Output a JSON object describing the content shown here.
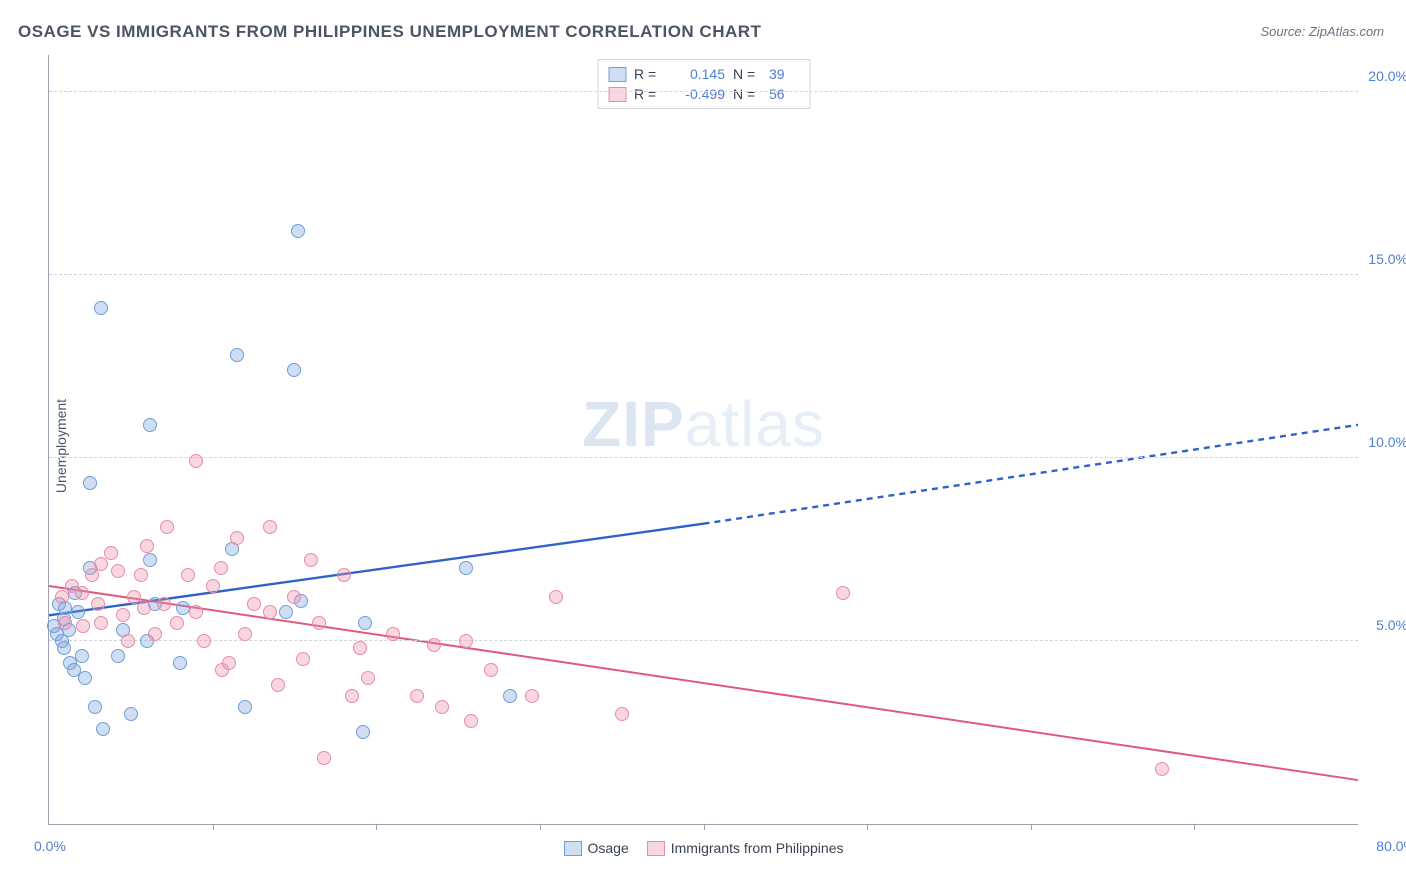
{
  "title": "OSAGE VS IMMIGRANTS FROM PHILIPPINES UNEMPLOYMENT CORRELATION CHART",
  "source_label": "Source: ZipAtlas.com",
  "yaxis_label": "Unemployment",
  "watermark": {
    "bold": "ZIP",
    "rest": "atlas"
  },
  "chart": {
    "type": "scatter",
    "xlim": [
      0,
      80
    ],
    "ylim": [
      0,
      21
    ],
    "x_label_min": "0.0%",
    "x_label_max": "80.0%",
    "xtick_positions": [
      10,
      20,
      30,
      40,
      50,
      60,
      70
    ],
    "yticks": [
      {
        "v": 5,
        "label": "5.0%"
      },
      {
        "v": 10,
        "label": "10.0%"
      },
      {
        "v": 15,
        "label": "15.0%"
      },
      {
        "v": 20,
        "label": "20.0%"
      }
    ],
    "grid_color": "#d1d5db",
    "axis_color": "#9ca3af",
    "background_color": "#ffffff",
    "marker_radius": 7,
    "marker_border_width": 1.5,
    "series": [
      {
        "key": "osage",
        "name": "Osage",
        "fill": "rgba(120,160,220,0.35)",
        "stroke": "#6f9fd8",
        "line_color": "#2f62c9",
        "line_width": 2.4,
        "R": "0.145",
        "N": "39",
        "reg_solid": {
          "x1": 0,
          "y1": 5.7,
          "x2": 40,
          "y2": 8.2
        },
        "reg_dash": {
          "x1": 40,
          "y1": 8.2,
          "x2": 80,
          "y2": 10.9
        },
        "points": [
          [
            0.3,
            5.4
          ],
          [
            0.5,
            5.2
          ],
          [
            0.6,
            6.0
          ],
          [
            0.8,
            5.0
          ],
          [
            0.9,
            5.6
          ],
          [
            0.9,
            4.8
          ],
          [
            1.0,
            5.9
          ],
          [
            1.2,
            5.3
          ],
          [
            1.3,
            4.4
          ],
          [
            1.5,
            4.2
          ],
          [
            1.6,
            6.3
          ],
          [
            1.8,
            5.8
          ],
          [
            2.0,
            4.6
          ],
          [
            2.2,
            4.0
          ],
          [
            2.5,
            7.0
          ],
          [
            2.5,
            9.3
          ],
          [
            2.8,
            3.2
          ],
          [
            3.2,
            14.1
          ],
          [
            3.3,
            2.6
          ],
          [
            4.2,
            4.6
          ],
          [
            4.5,
            5.3
          ],
          [
            5.0,
            3.0
          ],
          [
            6.2,
            10.9
          ],
          [
            6.2,
            7.2
          ],
          [
            6.5,
            6.0
          ],
          [
            6.0,
            5.0
          ],
          [
            8.0,
            4.4
          ],
          [
            8.2,
            5.9
          ],
          [
            11.2,
            7.5
          ],
          [
            11.5,
            12.8
          ],
          [
            12.0,
            3.2
          ],
          [
            14.5,
            5.8
          ],
          [
            15.0,
            12.4
          ],
          [
            15.2,
            16.2
          ],
          [
            15.4,
            6.1
          ],
          [
            19.2,
            2.5
          ],
          [
            19.3,
            5.5
          ],
          [
            25.5,
            7.0
          ],
          [
            28.2,
            3.5
          ]
        ]
      },
      {
        "key": "philippines",
        "name": "Immigrants from Philippines",
        "fill": "rgba(235,140,165,0.35)",
        "stroke": "#e98ba5",
        "line_color": "#e05a80",
        "line_width": 2.0,
        "R": "-0.499",
        "N": "56",
        "reg_solid": {
          "x1": 0,
          "y1": 6.5,
          "x2": 80,
          "y2": 1.2
        },
        "points": [
          [
            0.8,
            6.2
          ],
          [
            1.0,
            5.5
          ],
          [
            1.4,
            6.5
          ],
          [
            2.0,
            6.3
          ],
          [
            2.1,
            5.4
          ],
          [
            2.6,
            6.8
          ],
          [
            3.0,
            6.0
          ],
          [
            3.2,
            7.1
          ],
          [
            3.2,
            5.5
          ],
          [
            3.8,
            7.4
          ],
          [
            4.2,
            6.9
          ],
          [
            4.5,
            5.7
          ],
          [
            4.8,
            5.0
          ],
          [
            5.2,
            6.2
          ],
          [
            5.6,
            6.8
          ],
          [
            5.8,
            5.9
          ],
          [
            6.0,
            7.6
          ],
          [
            6.5,
            5.2
          ],
          [
            7.0,
            6.0
          ],
          [
            7.2,
            8.1
          ],
          [
            7.8,
            5.5
          ],
          [
            8.5,
            6.8
          ],
          [
            9.0,
            5.8
          ],
          [
            9.0,
            9.9
          ],
          [
            9.5,
            5.0
          ],
          [
            10.0,
            6.5
          ],
          [
            10.5,
            7.0
          ],
          [
            10.6,
            4.2
          ],
          [
            11.0,
            4.4
          ],
          [
            11.5,
            7.8
          ],
          [
            12.0,
            5.2
          ],
          [
            12.5,
            6.0
          ],
          [
            13.5,
            8.1
          ],
          [
            13.5,
            5.8
          ],
          [
            14.0,
            3.8
          ],
          [
            15.0,
            6.2
          ],
          [
            15.5,
            4.5
          ],
          [
            16.0,
            7.2
          ],
          [
            16.5,
            5.5
          ],
          [
            16.8,
            1.8
          ],
          [
            18.0,
            6.8
          ],
          [
            18.5,
            3.5
          ],
          [
            19.0,
            4.8
          ],
          [
            19.5,
            4.0
          ],
          [
            21.0,
            5.2
          ],
          [
            22.5,
            3.5
          ],
          [
            23.5,
            4.9
          ],
          [
            24.0,
            3.2
          ],
          [
            25.5,
            5.0
          ],
          [
            25.8,
            2.8
          ],
          [
            27.0,
            4.2
          ],
          [
            29.5,
            3.5
          ],
          [
            31.0,
            6.2
          ],
          [
            35.0,
            3.0
          ],
          [
            48.5,
            6.3
          ],
          [
            68.0,
            1.5
          ]
        ]
      }
    ]
  },
  "legend_top": {
    "R_label": "R =",
    "N_label": "N ="
  }
}
